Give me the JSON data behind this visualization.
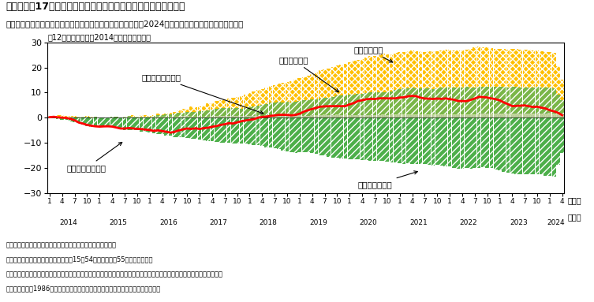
{
  "title": "第１－１－17図　非労働力人口から労働力人口への遷移要因分解",
  "subtitle": "女性は非労働力から労働力人口へのフローが増加してきたが、2024年に入って以降、横ばい傾向で推移",
  "ylabel_note": "（12か月移動平均、2014年１月差、万人）",
  "ylim": [
    -30,
    30
  ],
  "yticks": [
    -30,
    -20,
    -10,
    0,
    10,
    20,
    30
  ],
  "n_months": 124,
  "colors": {
    "male": "#7ab648",
    "female": "#ffc000",
    "elderly": "#4daf4a",
    "nonlabor": "#c8e696",
    "line": "#ff0000",
    "bg": "#ffffff"
  },
  "notes": [
    "（備考）１．総務省「労働力調査（基本集計）」により作成。",
    "　　　　２．男性及び女性はそれぞれ15〜54歳、高齢者は55歳以上男女計。",
    "　　　　３．遷移確率の計算は、２か月連続で調査に回答している世帯を用いて計算している。要因分解については、労働",
    "　　　　　省（1986）における手法を参考に補正した水準について分解している。"
  ]
}
